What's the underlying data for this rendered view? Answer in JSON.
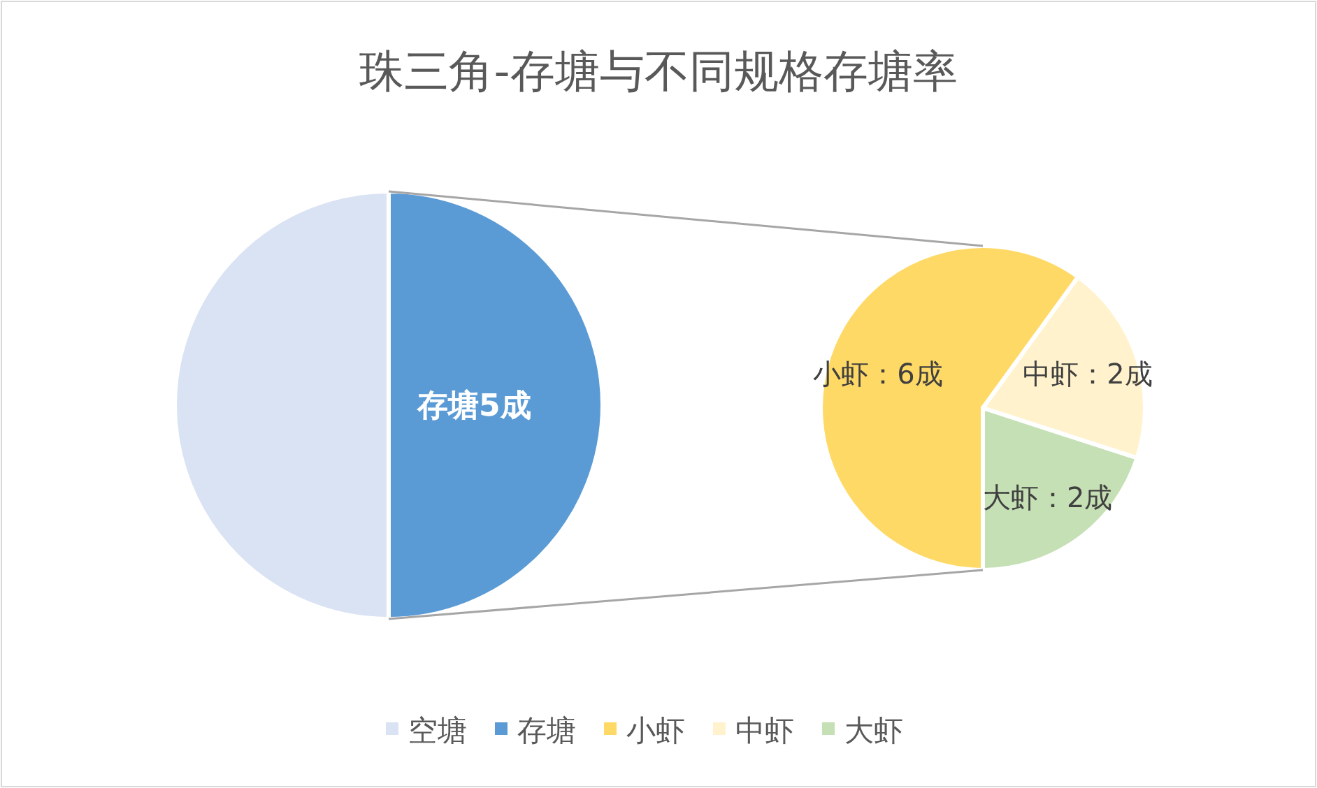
{
  "chart_data": [
    {
      "type": "pie",
      "title": "珠三角-存塘与不同规格存塘率",
      "categories": [
        "空塘",
        "存塘"
      ],
      "values": [
        5,
        5
      ],
      "colors": [
        "#dae3f3",
        "#5b9bd5"
      ],
      "value_labels": [
        null,
        "存塘5成"
      ],
      "legend": "bottom"
    },
    {
      "type": "pie",
      "categories": [
        "小虾",
        "中虾",
        "大虾"
      ],
      "values": [
        6,
        2,
        2
      ],
      "colors": [
        "#ffd966",
        "#fff2cc",
        "#c5e0b4"
      ],
      "value_labels": [
        "小虾：6成",
        "中虾：2成",
        "大虾：2成"
      ],
      "legend": "bottom"
    }
  ]
}
